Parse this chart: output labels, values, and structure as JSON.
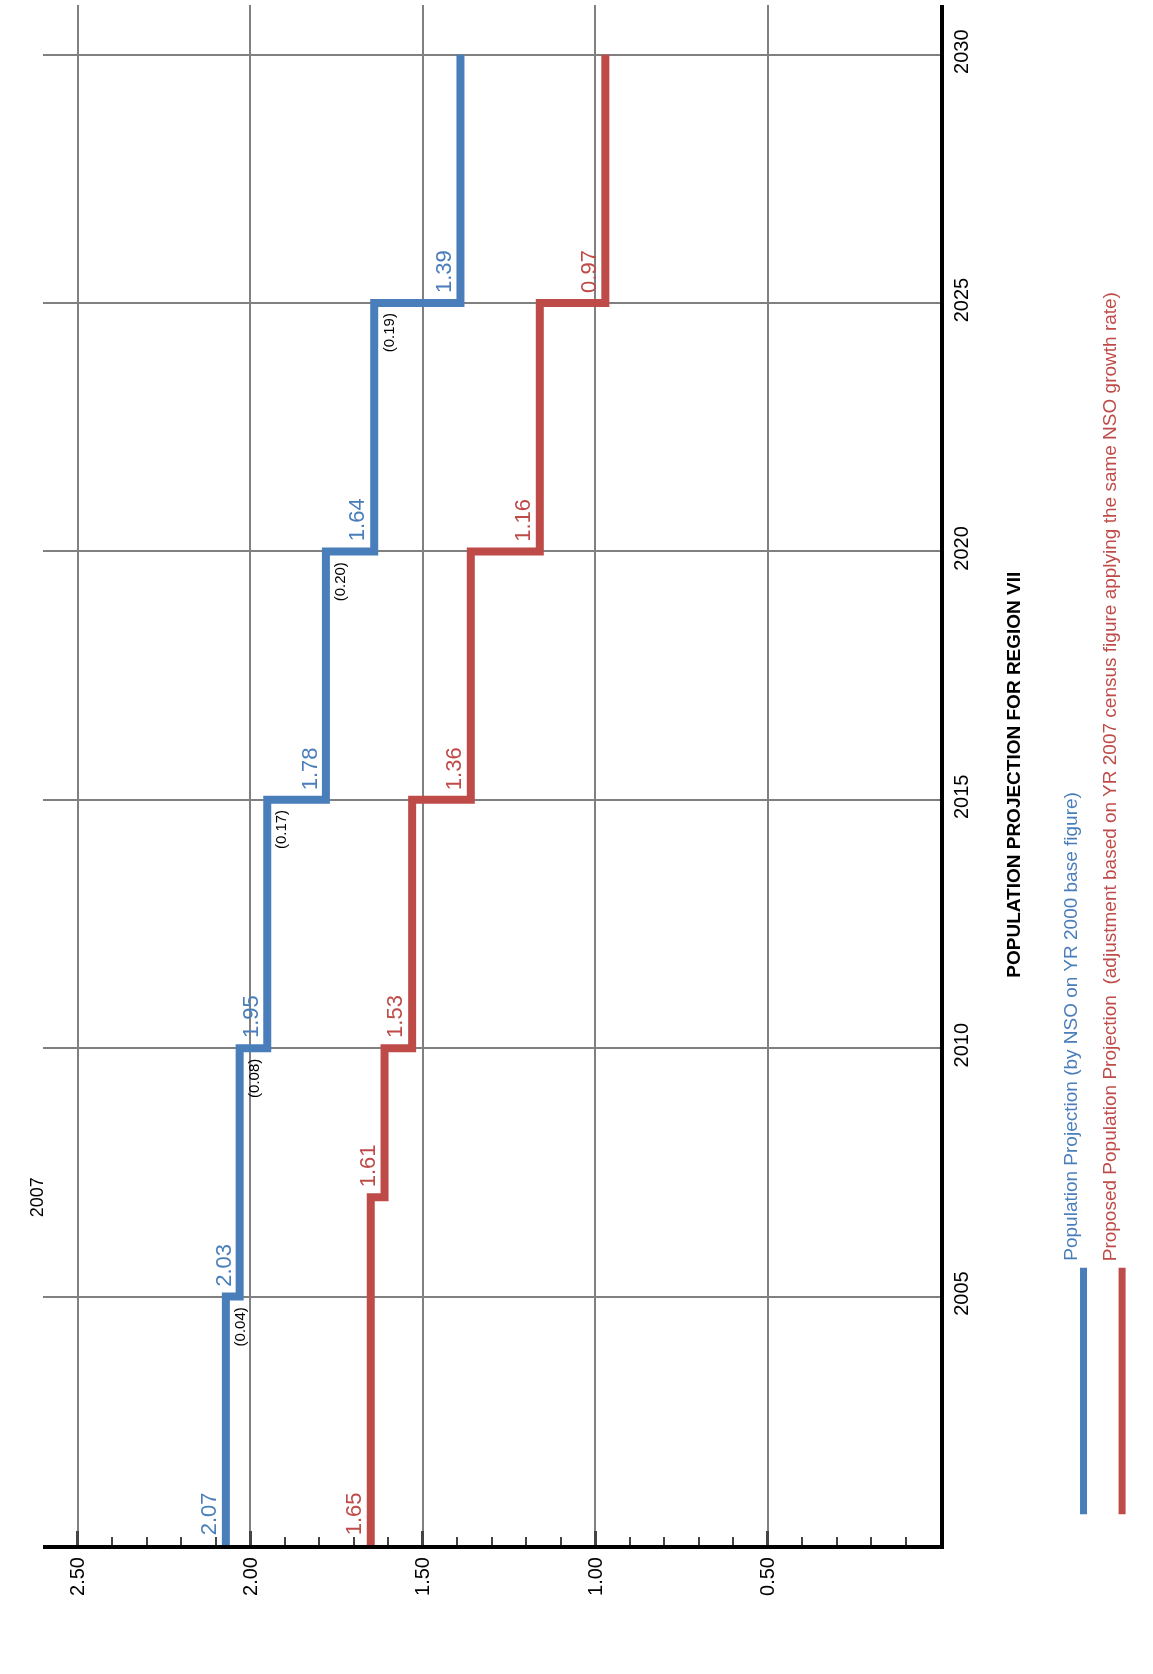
{
  "chart_data": {
    "type": "step",
    "orientation": "horizontal",
    "title": "POPULATION PROJECTION FOR REGION VII",
    "xlim": [
      2.6,
      0
    ],
    "xticks": [
      {
        "value": 2.5,
        "label": "2.50"
      },
      {
        "value": 2.0,
        "label": "2.00"
      },
      {
        "value": 1.5,
        "label": "1.50"
      },
      {
        "value": 1.0,
        "label": "1.00"
      },
      {
        "value": 0.5,
        "label": "0.50"
      }
    ],
    "ylim": [
      2000,
      2031
    ],
    "yticks": [
      2005,
      2010,
      2015,
      2020,
      2025,
      2030
    ],
    "series": [
      {
        "name": "Population Projection (by NSO on YR 2000 base figure)",
        "color": "#4a7ebb",
        "x": [
          2000,
          2005,
          2010,
          2015,
          2020,
          2025,
          2030
        ],
        "values": [
          2.07,
          2.03,
          1.95,
          1.78,
          1.64,
          1.39,
          1.39
        ],
        "value_labels": [
          "2.07",
          "2.03",
          "1.95",
          "1.78",
          "1.64",
          "1.39",
          null
        ]
      },
      {
        "name": "Proposed Population Projection  (adjustment based on YR 2007 census figure applying the same NSO growth rate)",
        "color": "#be4b48",
        "x": [
          2000,
          2007,
          2010,
          2015,
          2020,
          2025,
          2030
        ],
        "values": [
          1.65,
          1.61,
          1.53,
          1.36,
          1.16,
          0.97,
          0.97
        ],
        "value_labels": [
          "1.65",
          "1.61",
          "1.53",
          "1.36",
          "1.16",
          "0.97",
          null
        ]
      }
    ],
    "annotations": [
      "(0.04)",
      "(0.08)",
      "(0.17)",
      "(0.20)",
      "(0.19)",
      "2007"
    ],
    "grid": true,
    "legend": "right"
  }
}
